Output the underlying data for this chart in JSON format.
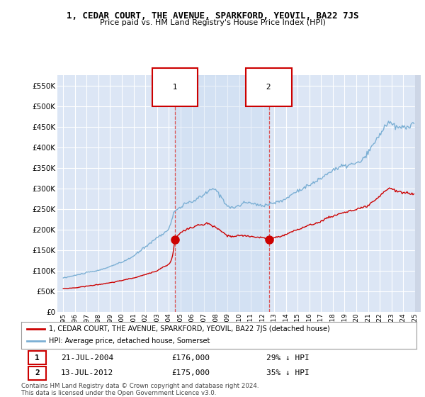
{
  "title": "1, CEDAR COURT, THE AVENUE, SPARKFORD, YEOVIL, BA22 7JS",
  "subtitle": "Price paid vs. HM Land Registry's House Price Index (HPI)",
  "background_color": "#ffffff",
  "plot_bg_color": "#dce6f5",
  "grid_color": "#ffffff",
  "ylim": [
    0,
    575000
  ],
  "yticks": [
    0,
    50000,
    100000,
    150000,
    200000,
    250000,
    300000,
    350000,
    400000,
    450000,
    500000,
    550000
  ],
  "transaction1_x": 2004.54,
  "transaction1_value": 176000,
  "transaction1_label": "1",
  "transaction2_x": 2012.54,
  "transaction2_value": 175000,
  "transaction2_label": "2",
  "legend_red_label": "1, CEDAR COURT, THE AVENUE, SPARKFORD, YEOVIL, BA22 7JS (detached house)",
  "legend_blue_label": "HPI: Average price, detached house, Somerset",
  "annotation1_date": "21-JUL-2004",
  "annotation1_price": "£176,000",
  "annotation1_pct": "29% ↓ HPI",
  "annotation2_date": "13-JUL-2012",
  "annotation2_price": "£175,000",
  "annotation2_pct": "35% ↓ HPI",
  "footer": "Contains HM Land Registry data © Crown copyright and database right 2024.\nThis data is licensed under the Open Government Licence v3.0.",
  "hpi_color": "#7bafd4",
  "price_color": "#cc0000",
  "marker_color": "#cc0000",
  "box_color": "#cc0000",
  "shade_color": "#d0e4f7",
  "hatch_color": "#c0c8d8"
}
